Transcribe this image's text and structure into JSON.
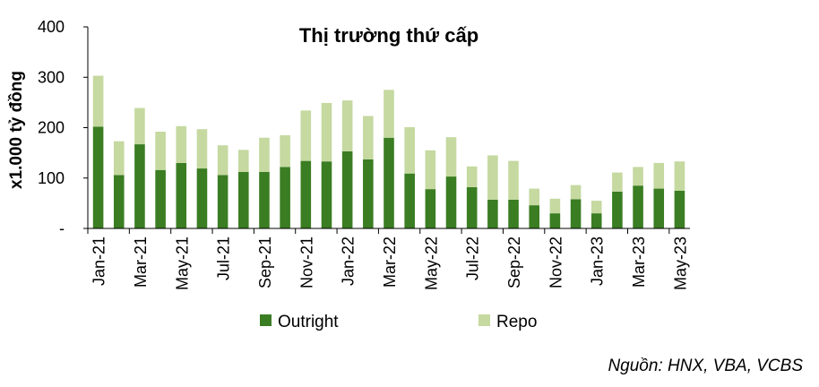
{
  "chart_data": {
    "type": "bar",
    "stacked": true,
    "title": "Thị trường thứ cấp",
    "ylabel": "x1.000 tỷ đồng",
    "xlabel": "",
    "ylim": [
      0,
      400
    ],
    "yticks": [
      "-",
      "100",
      "200",
      "300",
      "400"
    ],
    "grid": false,
    "legend_position": "bottom",
    "categories": [
      "Jan-21",
      "Feb-21",
      "Mar-21",
      "Apr-21",
      "May-21",
      "Jun-21",
      "Jul-21",
      "Aug-21",
      "Sep-21",
      "Oct-21",
      "Nov-21",
      "Dec-21",
      "Jan-22",
      "Feb-22",
      "Mar-22",
      "Apr-22",
      "May-22",
      "Jun-22",
      "Jul-22",
      "Aug-22",
      "Sep-22",
      "Oct-22",
      "Nov-22",
      "Dec-22",
      "Jan-23",
      "Feb-23",
      "Mar-23",
      "Apr-23",
      "May-23"
    ],
    "tick_labels": [
      "Jan-21",
      "Mar-21",
      "May-21",
      "Jul-21",
      "Sep-21",
      "Nov-21",
      "Jan-22",
      "Mar-22",
      "May-22",
      "Jul-22",
      "Sep-22",
      "Nov-22",
      "Jan-23",
      "Mar-23",
      "May-23"
    ],
    "series": [
      {
        "name": "Outright",
        "color": "#3a7d22",
        "values": [
          202,
          106,
          167,
          116,
          130,
          119,
          106,
          112,
          112,
          122,
          134,
          133,
          153,
          137,
          180,
          109,
          78,
          103,
          82,
          57,
          57,
          46,
          30,
          58,
          30,
          73,
          85,
          79,
          75
        ]
      },
      {
        "name": "Repo",
        "color": "#c5d9a0",
        "values": [
          101,
          67,
          72,
          76,
          73,
          78,
          59,
          44,
          68,
          63,
          100,
          116,
          101,
          86,
          95,
          92,
          77,
          78,
          41,
          88,
          77,
          33,
          29,
          28,
          25,
          38,
          37,
          51,
          58
        ]
      }
    ]
  },
  "source_text": "Nguồn: HNX, VBA, VCBS"
}
